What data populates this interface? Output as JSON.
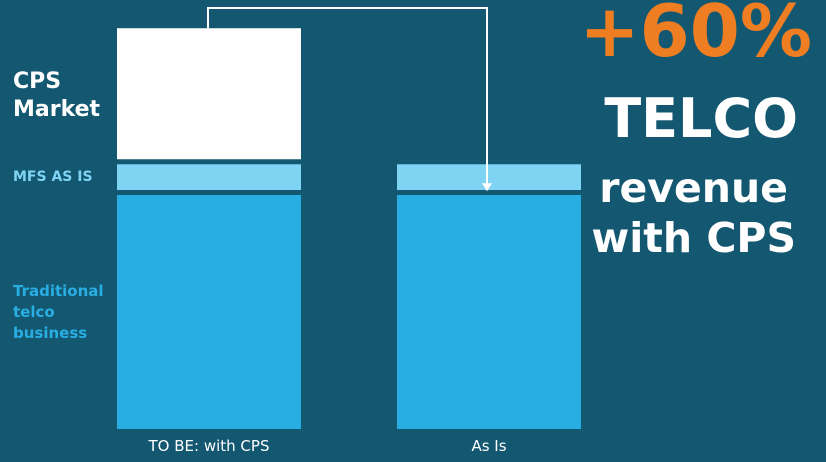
{
  "colors": {
    "background": "#135770",
    "cps_market": "#ffffff",
    "mfs": "#7fd3f3",
    "traditional": "#29aee3",
    "accent": "#ef7d22",
    "arrow": "#ffffff"
  },
  "chart_data": {
    "type": "bar",
    "stacked": true,
    "categories": [
      "TO BE: with CPS",
      "As Is"
    ],
    "series": [
      {
        "name": "Traditional telco business",
        "values": [
          100,
          100
        ],
        "color": "#29aee3"
      },
      {
        "name": "MFS AS IS",
        "values": [
          11,
          11
        ],
        "color": "#7fd3f3"
      },
      {
        "name": "CPS Market",
        "values": [
          56,
          0
        ],
        "color": "#ffffff"
      }
    ],
    "series_labels": {
      "cps_market": "CPS Market",
      "mfs": "MFS AS IS",
      "traditional": "Traditional telco business"
    },
    "annotation": {
      "change": "+60%",
      "line1": "TELCO",
      "line2": "revenue",
      "line3": "with CPS"
    },
    "grid": false
  }
}
